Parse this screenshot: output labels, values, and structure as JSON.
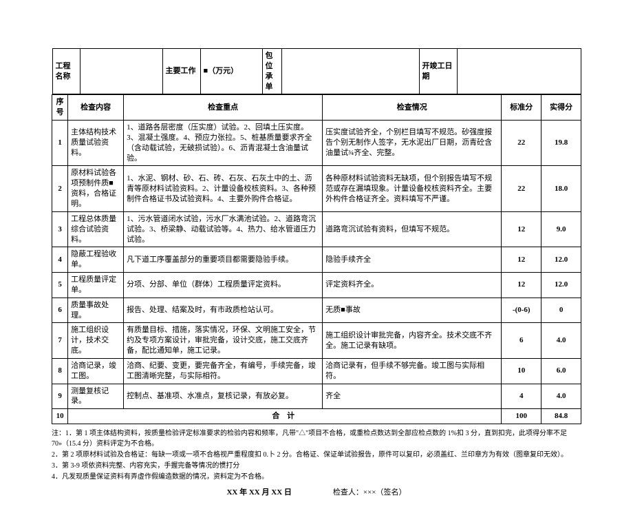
{
  "header": {
    "proj_label": "工程名称",
    "proj_value": "",
    "main_label": "主要工作",
    "main_value": "■（万元）",
    "unit_label": "包位承单",
    "unit_value": "",
    "start_label": "开竣工日期",
    "start_value": ""
  },
  "cols": {
    "seq": "序号",
    "item": "检查内容",
    "point": "检查重点",
    "status": "检查情况",
    "std": "标准分",
    "act": "实得分"
  },
  "rows": [
    {
      "seq": "1",
      "item": "主体结构技术质量试验资料。",
      "point": "1、道路各层密度（压实度）试验。2、回填土压实度。3、混凝土强度。4、预应力张拉。5、桩基质量要求齐全（含动载试验，无破损试验）。6、沥青混凝土含油量试验。",
      "status": "压实度试验齐全，个别栏目填写不规范。砂强度报告个别无制作人签字，无水泥出厂日期，沥青砼含油量试¾齐全、完整。",
      "std": "22",
      "act": "19.8"
    },
    {
      "seq": "2",
      "item": "原材料试验各项预制件质■资料，合格证明。",
      "point": "1、水泥、钢材、砂、石、砖、石灰、石灰土中的土、沥青等原材料试验资料。2、计量设备校核资料。3、各种预制件合格证书及试验资料。4、主要外购件合格证。",
      "status": "各种原材料试验资料无缺项，但个别报告填写不规范或存在漏填现象。计量设备校核资料齐全。主要外构件合格证齐全。资料填写不严谨。",
      "std": "22",
      "act": "18.0"
    },
    {
      "seq": "3",
      "item": "工程总体质量综合试验资料。",
      "point": "1、污水管道闭水试验，污水厂水满池试验。2、道路弯沉试验。3、桥梁静、动载试验等。4、热力、给水管道压力试验。",
      "status": "道路弯沉试验有资料，但填写不规范。",
      "std": "12",
      "act": "9.0"
    },
    {
      "seq": "4",
      "item": "隐蔽工程验收单。",
      "point": "凡下道工序覆盖部分的重要项目都需要隐验手续。",
      "status": "隐验手续齐全",
      "std": "12",
      "act": "12.0"
    },
    {
      "seq": "5",
      "item": "工程质量评定单。",
      "point": "分项、分部、单位（群体）工程质量评定资料。",
      "status": "评定资料齐全。",
      "std": "12",
      "act": "12.0"
    },
    {
      "seq": "6",
      "item": "质量事故处理。",
      "point": "报告、处理、结案及时，有市政质检站认可。",
      "status": "无质■事故",
      "std": "-(0-6)",
      "act": "0"
    },
    {
      "seq": "7",
      "item": "施工组织设计，技术交底。",
      "point": "有质量目标、措施，落实情况，环保、文明施工安全，节约及专项方案设计，审批完备，设计交底，施工交底齐备，配比通知单，施工记录。",
      "status": "施工组织设计审批完备，内容齐全。技术交底不齐全。施工记录有缺项。",
      "std": "6",
      "act": "4.0"
    },
    {
      "seq": "8",
      "item": "洽商记录，竣工图。",
      "point": "洽商、纪要、变更，要完备齐全，有编号，手续完备，竣工图清晰完整，与实际相符。",
      "status": "洽商记录有，但手续不够完备。竣工图与实际相符。",
      "std": "10",
      "act": "6.0"
    },
    {
      "seq": "9",
      "item": "测量复核记录。",
      "point": "控制点、基准项、水准点，复核记录，有放必复。",
      "status": "齐全",
      "std": "4",
      "act": "4.0"
    }
  ],
  "total": {
    "seq": "10",
    "label": "合            计",
    "std": "100",
    "act": "84.8"
  },
  "notes": {
    "n1": "注：1．第 1 项主体结构资料，按质量检验评定标准要求的检验内容和频率，凡带\"△\"项目不合格，或重检点数达到全部应检点数的 1%扣 3 分，直到扣完，此项得分率不足 70»（15.4 分）资料评定为不合格。",
    "n2": "2．第 2 项原材料试验及合格证：每缺一项或一项不合格视严重程度扣 0.卜 2 分。合格证、保证单试验报告，原件可以复印，必须盖红、兰印章方为有效（图章复印无效）。",
    "n3": "3．第 3-9 项依资料完整、内容充实，手握完备等情况的惯打分",
    "n4": "4．凡发现质量保证资料有弄虚作假编造数据的情况，资料定为不合格。"
  },
  "footer": {
    "date": "XX 年 XX 月 XX 日",
    "inspector": "检查人：×××（签名）"
  }
}
